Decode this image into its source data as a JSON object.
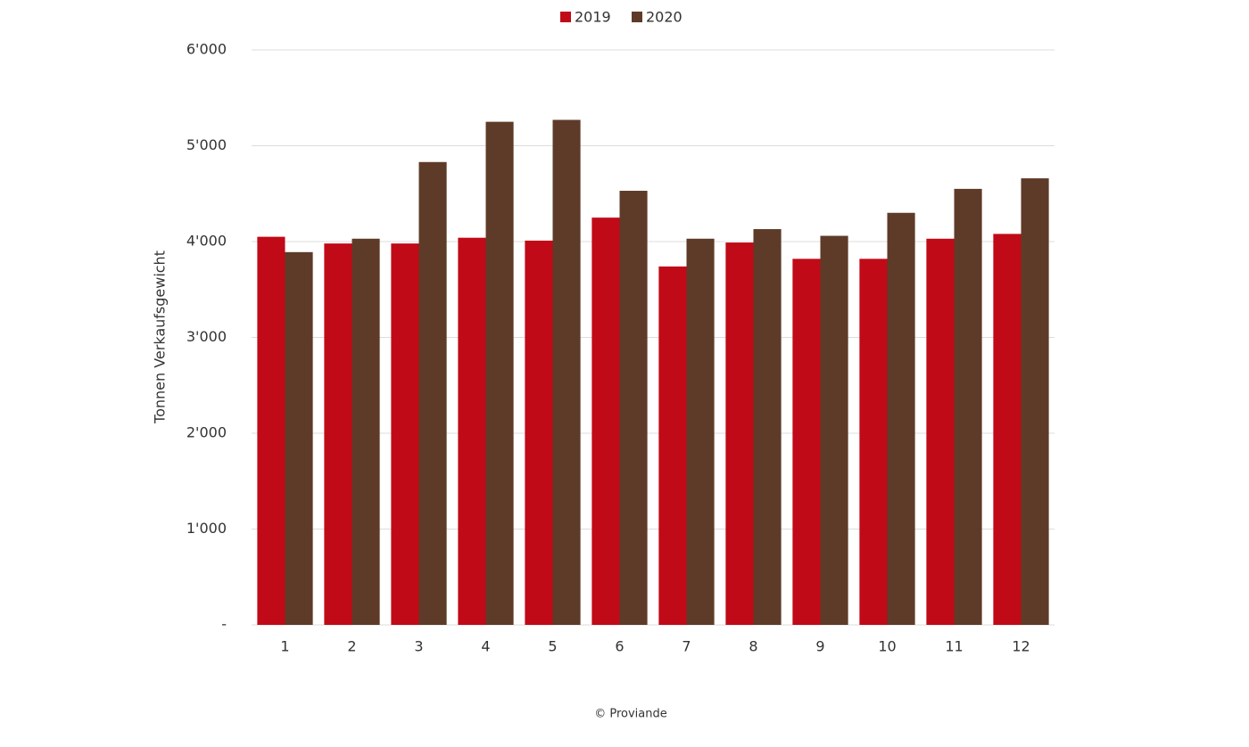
{
  "chart_data": {
    "type": "bar",
    "y_label": "Tonnen Verkaufsgewicht",
    "source": "© Proviande",
    "categories": [
      "1",
      "2",
      "3",
      "4",
      "5",
      "6",
      "7",
      "8",
      "9",
      "10",
      "11",
      "12"
    ],
    "series": [
      {
        "name": "2019",
        "color": "#c00a17",
        "values": [
          4050,
          3980,
          3980,
          4040,
          4010,
          4250,
          3740,
          3990,
          3820,
          3820,
          4030,
          4080
        ]
      },
      {
        "name": "2020",
        "color": "#5e3b28",
        "values": [
          3890,
          4030,
          4830,
          5250,
          5270,
          4530,
          4030,
          4130,
          4060,
          4300,
          4550,
          4660
        ]
      }
    ],
    "ylim": [
      0,
      6000
    ],
    "yticks": [
      {
        "value": 0,
        "label": "-"
      },
      {
        "value": 1000,
        "label": "1'000"
      },
      {
        "value": 2000,
        "label": "2'000"
      },
      {
        "value": 3000,
        "label": "3'000"
      },
      {
        "value": 4000,
        "label": "4'000"
      },
      {
        "value": 5000,
        "label": "5'000"
      },
      {
        "value": 6000,
        "label": "6'000"
      }
    ],
    "grid": true
  }
}
